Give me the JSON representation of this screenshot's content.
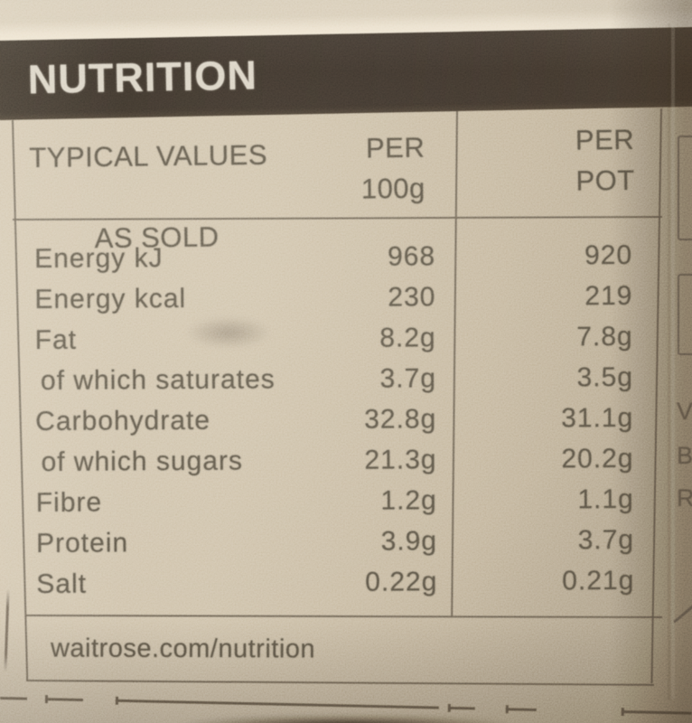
{
  "label": {
    "title": "NUTRITION",
    "table": {
      "header": {
        "rowhead_line1": "TYPICAL VALUES",
        "rowhead_line2": "AS SOLD",
        "col_per100g_line1": "PER",
        "col_per100g_line2": "100g",
        "col_perpot_line1": "PER",
        "col_perpot_line2": "POT"
      },
      "rows": [
        {
          "name": "Energy kJ",
          "per_100g": "968",
          "per_pot": "920"
        },
        {
          "name": "Energy kcal",
          "per_100g": "230",
          "per_pot": "219"
        },
        {
          "name": "Fat",
          "per_100g": "8.2g",
          "per_pot": "7.8g"
        },
        {
          "name": "of which saturates",
          "per_100g": "3.7g",
          "per_pot": "3.5g"
        },
        {
          "name": "Carbohydrate",
          "per_100g": "32.8g",
          "per_pot": "31.1g"
        },
        {
          "name": "of which sugars",
          "per_100g": "21.3g",
          "per_pot": "20.2g"
        },
        {
          "name": "Fibre",
          "per_100g": "1.2g",
          "per_pot": "1.1g"
        },
        {
          "name": "Protein",
          "per_100g": "3.9g",
          "per_pot": "3.7g"
        },
        {
          "name": "Salt",
          "per_100g": "0.22g",
          "per_pot": "0.21g"
        }
      ]
    },
    "footer_url": "waitrose.com/nutrition",
    "edge_fragments": {
      "letters": [
        "V",
        "B",
        "R"
      ]
    }
  },
  "colors": {
    "paper": "#cabda5",
    "band": "#3a3128",
    "ink": "#5b5447",
    "rule": "#6d6355",
    "title_ink": "#d9d2c3"
  }
}
